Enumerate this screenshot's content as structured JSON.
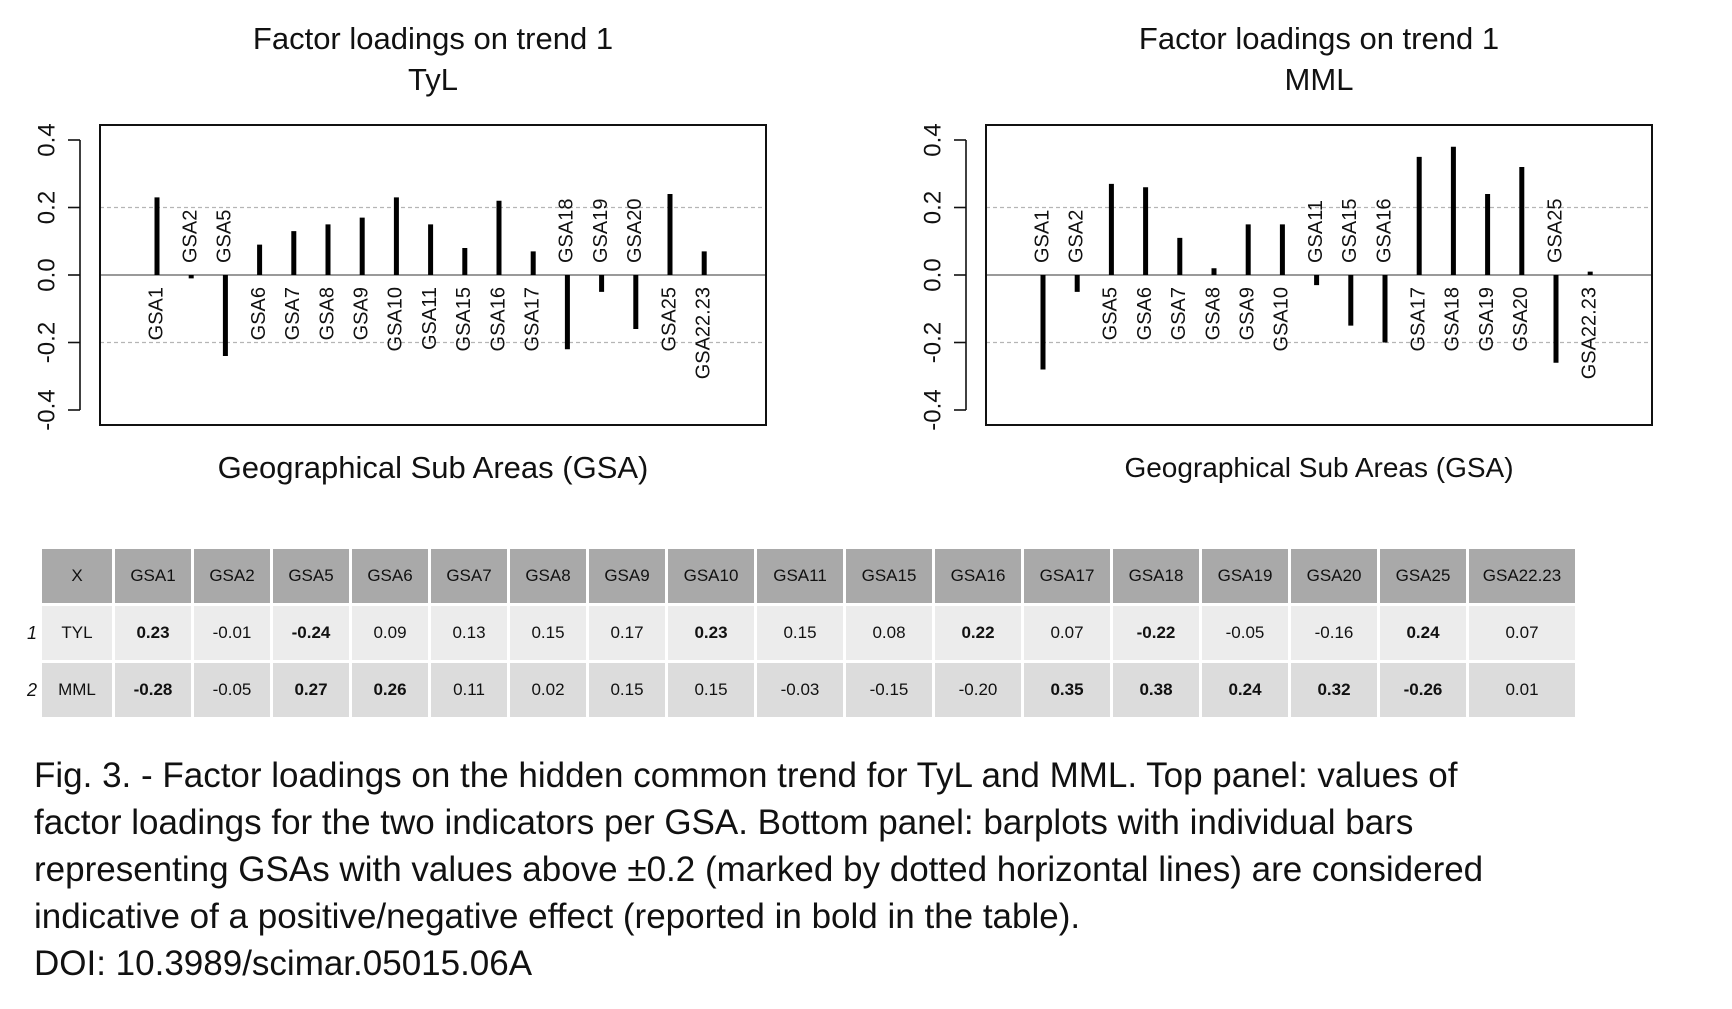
{
  "chart_data": [
    {
      "type": "bar",
      "title": "Factor loadings on trend 1",
      "subtitle": "TyL",
      "xlabel": "Geographical Sub Areas (GSA)",
      "ylabel": "",
      "ylim": [
        -0.4,
        0.4
      ],
      "yticks": [
        "-0.4",
        "-0.2",
        "0.0",
        "0.2",
        "0.4"
      ],
      "reference_lines": [
        0.2,
        -0.2
      ],
      "categories": [
        "GSA1",
        "GSA2",
        "GSA5",
        "GSA6",
        "GSA7",
        "GSA8",
        "GSA9",
        "GSA10",
        "GSA11",
        "GSA15",
        "GSA16",
        "GSA17",
        "GSA18",
        "GSA19",
        "GSA20",
        "GSA25",
        "GSA22.23"
      ],
      "values": [
        0.23,
        -0.01,
        -0.24,
        0.09,
        0.13,
        0.15,
        0.17,
        0.23,
        0.15,
        0.08,
        0.22,
        0.07,
        -0.22,
        -0.05,
        -0.16,
        0.24,
        0.07
      ]
    },
    {
      "type": "bar",
      "title": "Factor loadings on trend 1",
      "subtitle": "MML",
      "xlabel": "Geographical Sub Areas (GSA)",
      "ylabel": "",
      "ylim": [
        -0.4,
        0.4
      ],
      "yticks": [
        "-0.4",
        "-0.2",
        "0.0",
        "0.2",
        "0.4"
      ],
      "reference_lines": [
        0.2,
        -0.2
      ],
      "categories": [
        "GSA1",
        "GSA2",
        "GSA5",
        "GSA6",
        "GSA7",
        "GSA8",
        "GSA9",
        "GSA10",
        "GSA11",
        "GSA15",
        "GSA16",
        "GSA17",
        "GSA18",
        "GSA19",
        "GSA20",
        "GSA25",
        "GSA22.23"
      ],
      "values": [
        -0.28,
        -0.05,
        0.27,
        0.26,
        0.11,
        0.02,
        0.15,
        0.15,
        -0.03,
        -0.15,
        -0.2,
        0.35,
        0.38,
        0.24,
        0.32,
        -0.26,
        0.01
      ]
    }
  ],
  "table": {
    "header": [
      "X",
      "GSA1",
      "GSA2",
      "GSA5",
      "GSA6",
      "GSA7",
      "GSA8",
      "GSA9",
      "GSA10",
      "GSA11",
      "GSA15",
      "GSA16",
      "GSA17",
      "GSA18",
      "GSA19",
      "GSA20",
      "GSA25",
      "GSA22.23"
    ],
    "rows": [
      {
        "num": "1",
        "cells": [
          "TYL",
          "0.23",
          "-0.01",
          "-0.24",
          "0.09",
          "0.13",
          "0.15",
          "0.17",
          "0.23",
          "0.15",
          "0.08",
          "0.22",
          "0.07",
          "-0.22",
          "-0.05",
          "-0.16",
          "0.24",
          "0.07"
        ],
        "bold": [
          false,
          true,
          false,
          true,
          false,
          false,
          false,
          false,
          true,
          false,
          false,
          true,
          false,
          true,
          false,
          false,
          true,
          false
        ]
      },
      {
        "num": "2",
        "cells": [
          "MML",
          "-0.28",
          "-0.05",
          "0.27",
          "0.26",
          "0.11",
          "0.02",
          "0.15",
          "0.15",
          "-0.03",
          "-0.15",
          "-0.20",
          "0.35",
          "0.38",
          "0.24",
          "0.32",
          "-0.26",
          "0.01"
        ],
        "bold": [
          false,
          true,
          false,
          true,
          true,
          false,
          false,
          false,
          false,
          false,
          false,
          false,
          true,
          true,
          true,
          true,
          true,
          false
        ]
      }
    ]
  },
  "caption": {
    "line1": "Fig. 3. - Factor loadings on the hidden common trend for TyL and MML. Top panel: values of",
    "line2": "factor loadings for the two indicators per GSA. Bottom panel: barplots with individual bars",
    "line3": "representing GSAs with values above ±0.2 (marked by dotted horizontal lines) are considered",
    "line4": "indicative of a positive/negative effect (reported in bold in the table).",
    "line5": "DOI: 10.3989/scimar.05015.06A"
  }
}
